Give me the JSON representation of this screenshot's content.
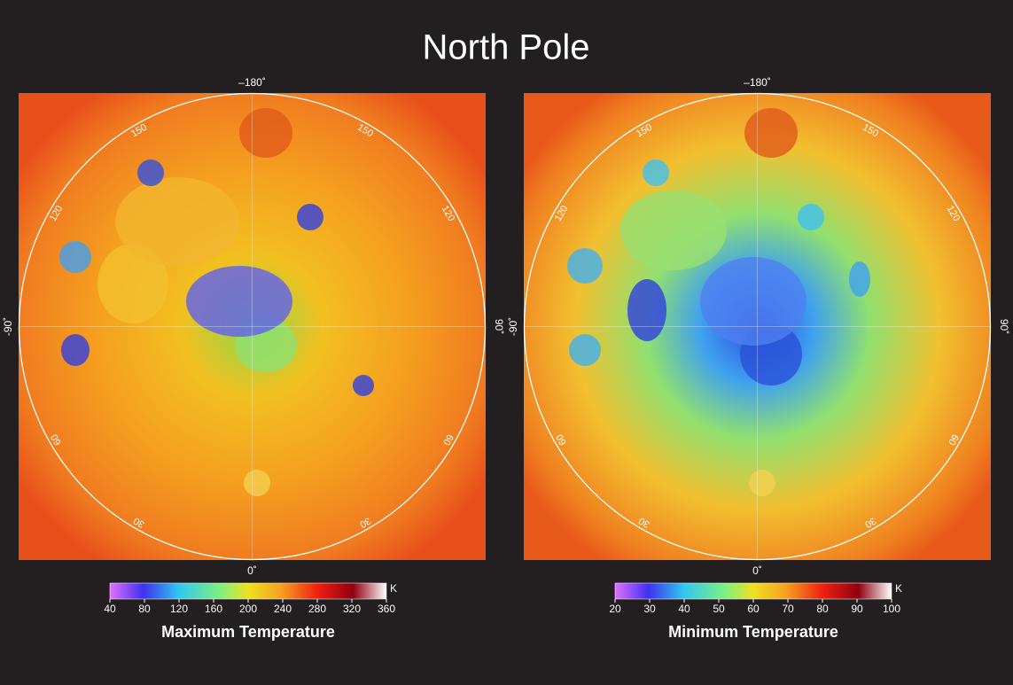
{
  "title": "North Pole",
  "panels": [
    {
      "top_label": "–180˚",
      "bottom_label": "0˚",
      "left_label": "-90˚",
      "right_label": "90˚",
      "ring_labels": [
        "150",
        "150",
        "120",
        "120",
        "60",
        "60",
        "30",
        "30"
      ],
      "colorbar": {
        "unit": "K",
        "ticks": [
          "40",
          "80",
          "120",
          "160",
          "200",
          "240",
          "280",
          "320",
          "360"
        ],
        "label": "Maximum Temperature"
      }
    },
    {
      "top_label": "–180˚",
      "bottom_label": "0˚",
      "left_label": "-90˚",
      "right_label": "90˚",
      "ring_labels": [
        "150",
        "150",
        "120",
        "120",
        "60",
        "60",
        "30",
        "30"
      ],
      "colorbar": {
        "unit": "K",
        "ticks": [
          "20",
          "30",
          "40",
          "50",
          "60",
          "70",
          "80",
          "90",
          "100"
        ],
        "label": "Minimum Temperature"
      }
    }
  ]
}
